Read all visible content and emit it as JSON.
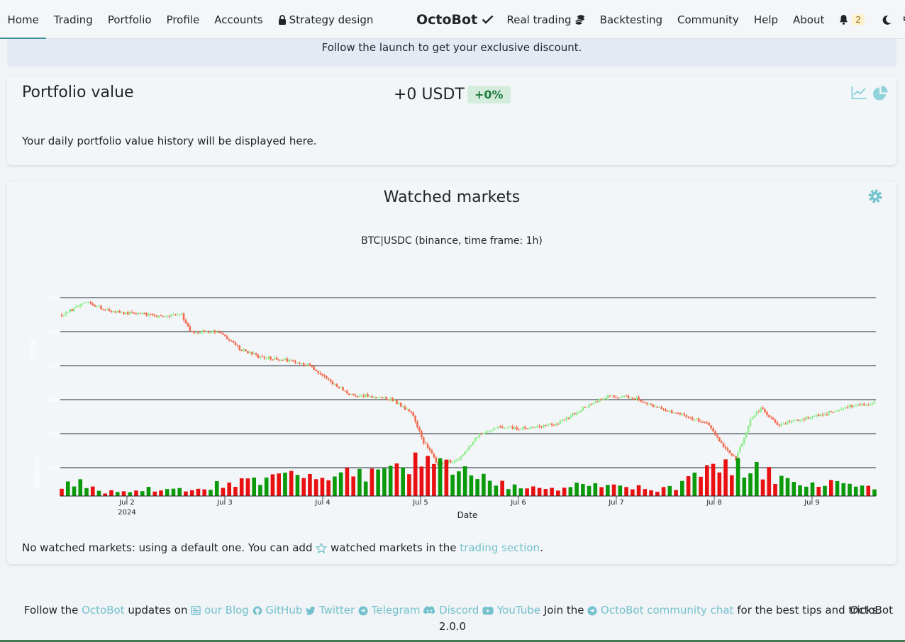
{
  "nav": {
    "left": [
      "Home",
      "Trading",
      "Portfolio",
      "Profile",
      "Accounts",
      "Strategy design"
    ],
    "brand": "OctoBot",
    "right": [
      "Real trading",
      "Backtesting",
      "Community",
      "Help",
      "About"
    ],
    "notification_count": "2",
    "icons": [
      "lock-icon",
      "check-icon",
      "coins-icon",
      "bell-icon",
      "moon-icon",
      "gears-icon"
    ]
  },
  "banner": {
    "text": "Follow the launch to get your exclusive discount."
  },
  "portfolio": {
    "title": "Portfolio value",
    "value": "+0 USDT",
    "change": "+0%",
    "message": "Your daily portfolio value history will be displayed here."
  },
  "markets": {
    "title": "Watched markets",
    "message_before": "No watched markets: using a default one. You can add",
    "message_middle": "watched markets in the",
    "message_link": "trading section",
    "message_end": "."
  },
  "chart_data": {
    "type": "candlestick",
    "title": "BTC|USDC (binance, time frame: 1h)",
    "xlabel": "Date",
    "ylabel": "Price",
    "volume_label": "Volume",
    "x_ticks": [
      "Jul 2",
      "Jul 3",
      "Jul 4",
      "Jul 5",
      "Jul 6",
      "Jul 7",
      "Jul 8",
      "Jul 9"
    ],
    "x_tick_year": "2024",
    "y_ticks": [
      "64k",
      "62k",
      "60k",
      "58k",
      "56k",
      "54k"
    ],
    "ylim": [
      53500,
      64500
    ],
    "colors": {
      "up": "#90ee90",
      "down": "#f36b4e",
      "vol_up": "#0a9a0a",
      "vol_down": "#e81010"
    },
    "price_path": [
      [
        0,
        63000
      ],
      [
        12,
        63700
      ],
      [
        24,
        63200
      ],
      [
        40,
        63000
      ],
      [
        48,
        62900
      ],
      [
        58,
        63000
      ],
      [
        62,
        62000
      ],
      [
        76,
        62000
      ],
      [
        86,
        61000
      ],
      [
        96,
        60500
      ],
      [
        110,
        60300
      ],
      [
        120,
        60000
      ],
      [
        130,
        59000
      ],
      [
        140,
        58300
      ],
      [
        150,
        58200
      ],
      [
        160,
        58000
      ],
      [
        170,
        57100
      ],
      [
        175,
        55500
      ],
      [
        182,
        54200
      ],
      [
        192,
        54500
      ],
      [
        202,
        56000
      ],
      [
        212,
        56400
      ],
      [
        225,
        56300
      ],
      [
        240,
        56600
      ],
      [
        252,
        57500
      ],
      [
        264,
        58200
      ],
      [
        278,
        58100
      ],
      [
        286,
        57600
      ],
      [
        300,
        57100
      ],
      [
        312,
        56600
      ],
      [
        320,
        55200
      ],
      [
        326,
        54500
      ],
      [
        333,
        56800
      ],
      [
        338,
        57500
      ],
      [
        346,
        56500
      ],
      [
        356,
        56800
      ],
      [
        370,
        57200
      ],
      [
        380,
        57600
      ],
      [
        393,
        57800
      ]
    ],
    "volume_profile": [
      [
        0,
        0.25
      ],
      [
        10,
        0.27
      ],
      [
        20,
        0.08
      ],
      [
        35,
        0.12
      ],
      [
        50,
        0.18
      ],
      [
        64,
        0.1
      ],
      [
        80,
        0.3
      ],
      [
        96,
        0.35
      ],
      [
        110,
        0.5
      ],
      [
        122,
        0.45
      ],
      [
        132,
        0.55
      ],
      [
        145,
        0.42
      ],
      [
        160,
        0.5
      ],
      [
        172,
        0.72
      ],
      [
        182,
        0.75
      ],
      [
        194,
        0.5
      ],
      [
        206,
        0.35
      ],
      [
        220,
        0.18
      ],
      [
        235,
        0.15
      ],
      [
        250,
        0.28
      ],
      [
        262,
        0.2
      ],
      [
        276,
        0.18
      ],
      [
        290,
        0.14
      ],
      [
        300,
        0.25
      ],
      [
        312,
        0.48
      ],
      [
        322,
        0.62
      ],
      [
        332,
        0.68
      ],
      [
        345,
        0.42
      ],
      [
        355,
        0.22
      ],
      [
        368,
        0.25
      ],
      [
        380,
        0.28
      ],
      [
        393,
        0.22
      ]
    ]
  },
  "footer": {
    "lead": "Follow the",
    "octobot": "OctoBot",
    "updates_on": "updates on",
    "links": [
      "our Blog",
      "GitHub",
      "Twitter",
      "Telegram",
      "Discord",
      "YouTube"
    ],
    "join": "Join the",
    "chat": "OctoBot community chat",
    "tail": "for the best tips and tricks.",
    "brand": "OctoBot",
    "version": "2.0.0"
  }
}
